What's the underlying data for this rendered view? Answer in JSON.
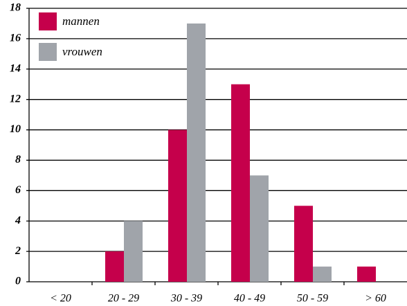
{
  "chart_data": {
    "type": "bar",
    "categories": [
      "< 20",
      "20 - 29",
      "30 - 39",
      "40 - 49",
      "50 - 59",
      "> 60"
    ],
    "series": [
      {
        "name": "mannen",
        "color": "#c5004b",
        "values": [
          0,
          2,
          10,
          13,
          5,
          1
        ]
      },
      {
        "name": "vrouwen",
        "color": "#a0a4aa",
        "values": [
          0,
          4,
          17,
          7,
          1,
          0
        ]
      }
    ],
    "ylim": [
      0,
      18
    ],
    "yticks": [
      0,
      2,
      4,
      6,
      8,
      10,
      12,
      14,
      16,
      18
    ],
    "grid": true,
    "legend": "top-left"
  }
}
